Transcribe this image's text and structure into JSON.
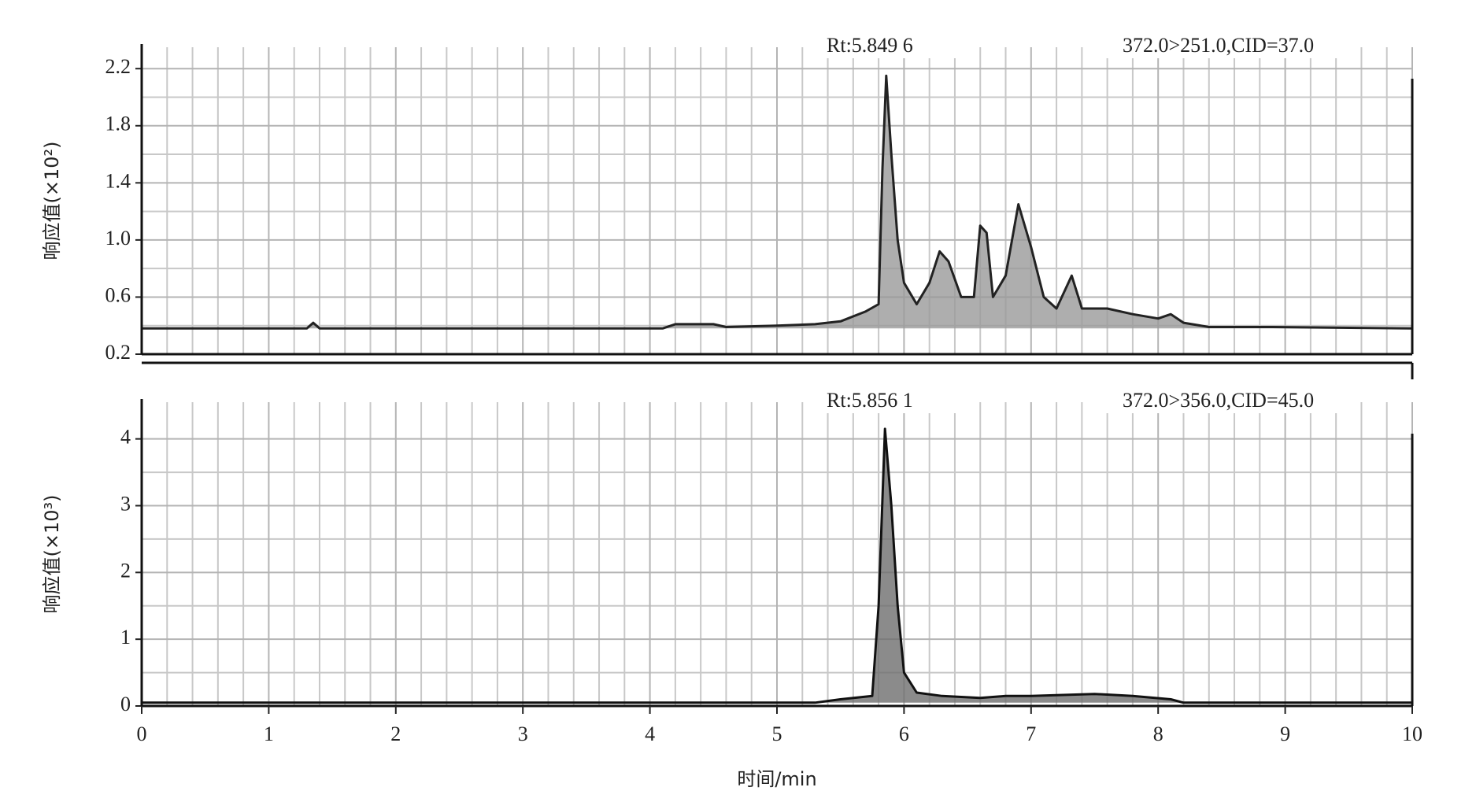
{
  "chart_data": [
    {
      "type": "line",
      "ylabel": "响应值(×10²)",
      "annotations": [
        "Rt:5.849 6",
        "372.0>251.0,CID=37.0"
      ],
      "color": "#222222",
      "fill": "#9a9a9a",
      "x": [
        0,
        1.3,
        1.35,
        1.4,
        4.1,
        4.2,
        4.5,
        4.6,
        5.0,
        5.3,
        5.5,
        5.7,
        5.8,
        5.83,
        5.86,
        5.9,
        5.95,
        6.0,
        6.1,
        6.2,
        6.28,
        6.35,
        6.45,
        6.55,
        6.6,
        6.65,
        6.7,
        6.8,
        6.9,
        7.0,
        7.1,
        7.2,
        7.32,
        7.4,
        7.6,
        7.8,
        8.0,
        8.1,
        8.2,
        8.4,
        8.9,
        10
      ],
      "values": [
        0.38,
        0.38,
        0.42,
        0.38,
        0.38,
        0.41,
        0.41,
        0.39,
        0.4,
        0.41,
        0.43,
        0.5,
        0.55,
        1.5,
        2.15,
        1.6,
        1.0,
        0.7,
        0.55,
        0.7,
        0.92,
        0.85,
        0.6,
        0.6,
        1.1,
        1.05,
        0.6,
        0.75,
        1.25,
        0.95,
        0.6,
        0.52,
        0.75,
        0.52,
        0.52,
        0.48,
        0.45,
        0.48,
        0.42,
        0.39,
        0.39,
        0.38
      ],
      "xlim": [
        0,
        10
      ],
      "ylim": [
        0.2,
        2.35
      ],
      "yticks": [
        0.2,
        0.6,
        {
          "value": 1,
          "label": "1.0"
        },
        1.4,
        1.8,
        2.2
      ],
      "grid": true
    },
    {
      "type": "line",
      "ylabel": "响应值(×10³)",
      "xlabel": "时间/min",
      "annotations": [
        "Rt:5.856 1",
        "372.0>356.0,CID=45.0"
      ],
      "color": "#111111",
      "fill": "#6e6e6e",
      "x": [
        0,
        5.3,
        5.5,
        5.75,
        5.8,
        5.85,
        5.9,
        5.95,
        6.0,
        6.1,
        6.3,
        6.6,
        6.8,
        7.0,
        7.5,
        7.8,
        8.1,
        8.2,
        10
      ],
      "values": [
        0.05,
        0.05,
        0.1,
        0.15,
        1.5,
        4.15,
        3.0,
        1.5,
        0.5,
        0.2,
        0.15,
        0.12,
        0.15,
        0.15,
        0.18,
        0.15,
        0.1,
        0.05,
        0.05
      ],
      "xlim": [
        0,
        10
      ],
      "ylim": [
        0,
        4.55
      ],
      "xticks": [
        0,
        1,
        2,
        3,
        4,
        5,
        6,
        7,
        8,
        9,
        10
      ],
      "yticks": [
        0,
        1,
        2,
        3,
        4
      ],
      "grid": true
    }
  ]
}
